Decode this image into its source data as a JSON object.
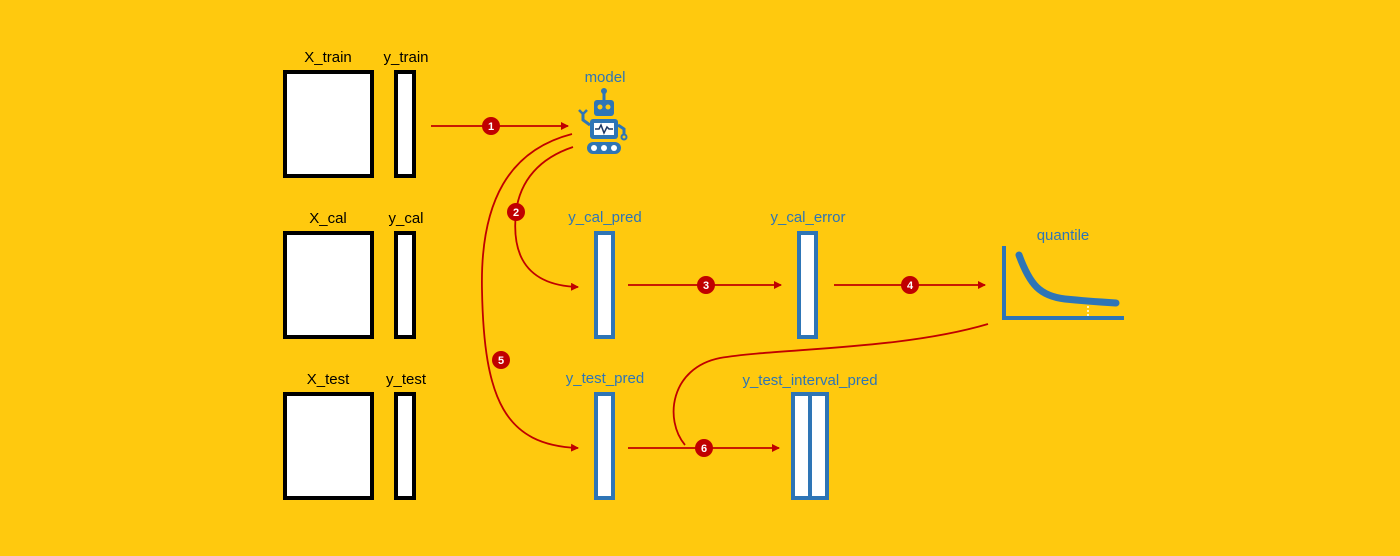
{
  "colors": {
    "background": "#FFC90E",
    "arrow": "#C00000",
    "accent_blue": "#2E75B6",
    "data_box_border": "#000000",
    "box_fill": "#FFFFFF",
    "robot_dark": "#1F3864"
  },
  "datasets": {
    "train": {
      "x_label": "X_train",
      "y_label": "y_train"
    },
    "cal": {
      "x_label": "X_cal",
      "y_label": "y_cal"
    },
    "test": {
      "x_label": "X_test",
      "y_label": "y_test"
    }
  },
  "model": {
    "label": "model",
    "icon": "robot-icon"
  },
  "predictions": {
    "y_cal_pred": "y_cal_pred",
    "y_cal_error": "y_cal_error",
    "y_test_pred": "y_test_pred",
    "y_test_interval_pred": "y_test_interval_pred"
  },
  "quantile": {
    "label": "quantile",
    "icon": "quantile-curve-icon"
  },
  "steps": [
    "1",
    "2",
    "3",
    "4",
    "5",
    "6"
  ]
}
